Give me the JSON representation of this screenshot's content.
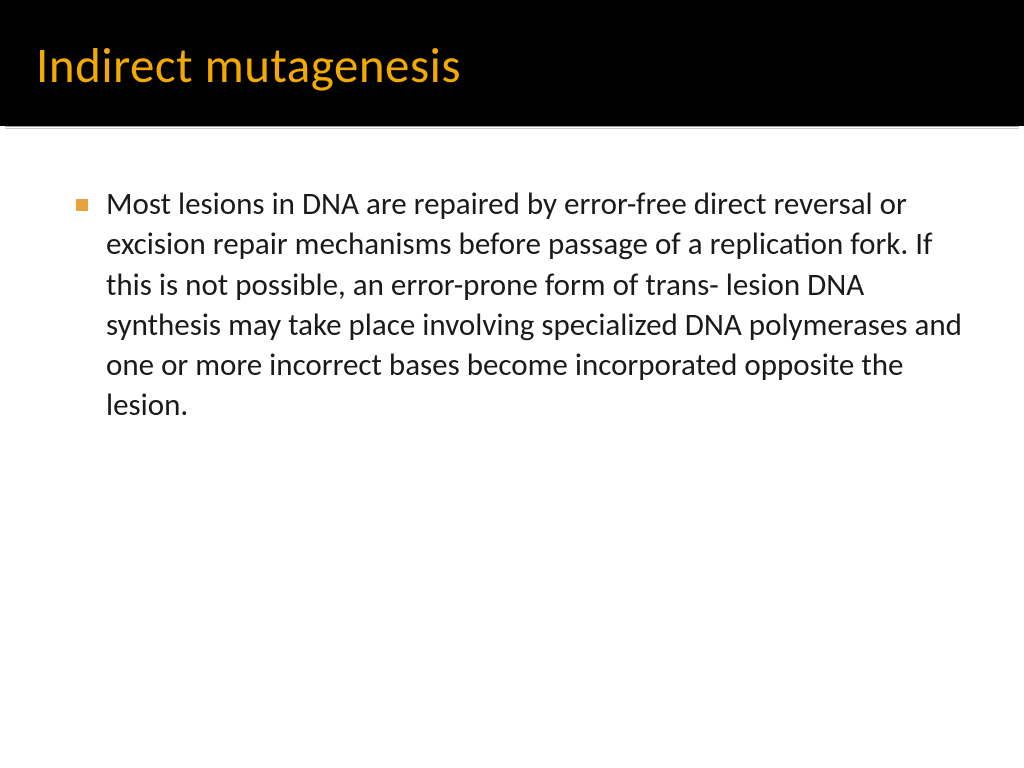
{
  "slide": {
    "title": "Indirect mutagenesis",
    "title_color": "#f2a900",
    "title_bg": "#000000",
    "title_fontsize": 49,
    "bullet_marker_color": "#e8a33d",
    "body_fontsize": 31,
    "body_color": "#1a1a1a",
    "background_color": "#ffffff",
    "divider_top_color": "#9a9a9a",
    "divider_bottom_color": "#c9c9c9",
    "bullets": [
      "Most lesions in DNA are repaired by error-free direct reversal or excision repair mechanisms before passage of a replication fork. If this is not possible, an error-prone form of trans- lesion DNA synthesis may take place involving specialized DNA polymerases and one or more incorrect bases become incorporated opposite the lesion."
    ]
  }
}
